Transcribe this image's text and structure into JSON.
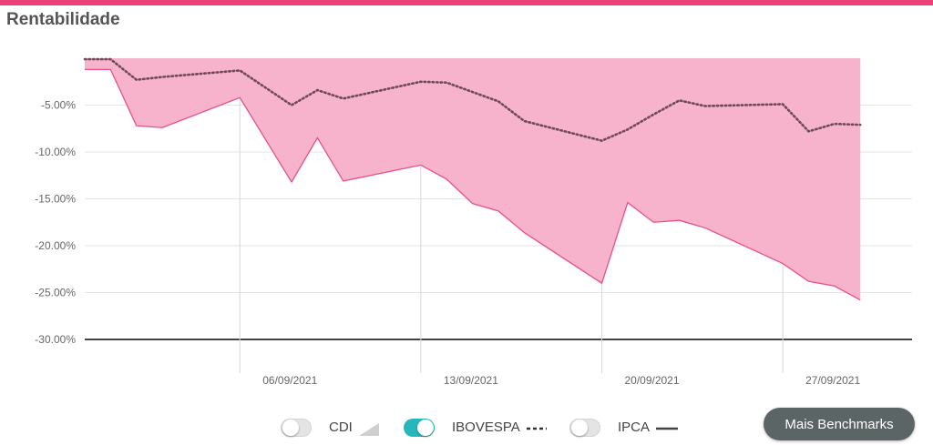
{
  "theme": {
    "accent": "#ec407a",
    "fill": "#f7b3cc",
    "line": "#e8508a",
    "ibov_line": "#6e4a55",
    "toggle_on": "#26b7bd"
  },
  "header": {
    "title": "Rentabilidade"
  },
  "legend": {
    "items": [
      {
        "label": "CDI",
        "on": false,
        "swatch": "area"
      },
      {
        "label": "IBOVESPA",
        "on": true,
        "swatch": "dashed"
      },
      {
        "label": "IPCA",
        "on": false,
        "swatch": "solid"
      }
    ]
  },
  "actions": {
    "benchmarks_label": "Mais Benchmarks"
  },
  "chart_data": {
    "type": "area",
    "ylim": [
      -30,
      0
    ],
    "yticks": [
      -5,
      -10,
      -15,
      -20,
      -25,
      -30
    ],
    "ytick_labels": [
      "-5.00%",
      "-10.00%",
      "-15.00%",
      "-20.00%",
      "-25.00%",
      "-30.00%"
    ],
    "xlim": [
      "2021-08-31",
      "2021-10-02"
    ],
    "xticks": [
      "2021-09-06",
      "2021-09-13",
      "2021-09-20",
      "2021-09-27"
    ],
    "xtick_labels": [
      "06/09/2021",
      "13/09/2021",
      "20/09/2021",
      "27/09/2021"
    ],
    "grid": true,
    "series": [
      {
        "style": "area",
        "x": [
          "2021-08-31",
          "2021-09-01",
          "2021-09-02",
          "2021-09-03",
          "2021-09-06",
          "2021-09-08",
          "2021-09-09",
          "2021-09-10",
          "2021-09-13",
          "2021-09-14",
          "2021-09-15",
          "2021-09-16",
          "2021-09-17",
          "2021-09-20",
          "2021-09-21",
          "2021-09-22",
          "2021-09-23",
          "2021-09-24",
          "2021-09-27",
          "2021-09-28",
          "2021-09-29",
          "2021-09-30"
        ],
        "values": [
          -1.2,
          -1.2,
          -7.2,
          -7.4,
          -4.2,
          -13.2,
          -8.5,
          -13.1,
          -11.4,
          -12.9,
          -15.5,
          -16.3,
          -18.6,
          -24.0,
          -15.4,
          -17.5,
          -17.3,
          -18.1,
          -21.9,
          -23.8,
          -24.3,
          -25.8
        ]
      },
      {
        "name": "IBOVESPA",
        "style": "dotted",
        "x": [
          "2021-08-31",
          "2021-09-01",
          "2021-09-02",
          "2021-09-03",
          "2021-09-06",
          "2021-09-08",
          "2021-09-09",
          "2021-09-10",
          "2021-09-13",
          "2021-09-14",
          "2021-09-15",
          "2021-09-16",
          "2021-09-17",
          "2021-09-20",
          "2021-09-21",
          "2021-09-22",
          "2021-09-23",
          "2021-09-24",
          "2021-09-27",
          "2021-09-28",
          "2021-09-29",
          "2021-09-30"
        ],
        "values": [
          -0.1,
          -0.1,
          -2.3,
          -2.0,
          -1.3,
          -5.0,
          -3.4,
          -4.3,
          -2.5,
          -2.6,
          -3.6,
          -4.6,
          -6.7,
          -8.8,
          -7.6,
          -6.0,
          -4.5,
          -5.1,
          -4.9,
          -7.8,
          -7.0,
          -7.1
        ]
      }
    ]
  }
}
